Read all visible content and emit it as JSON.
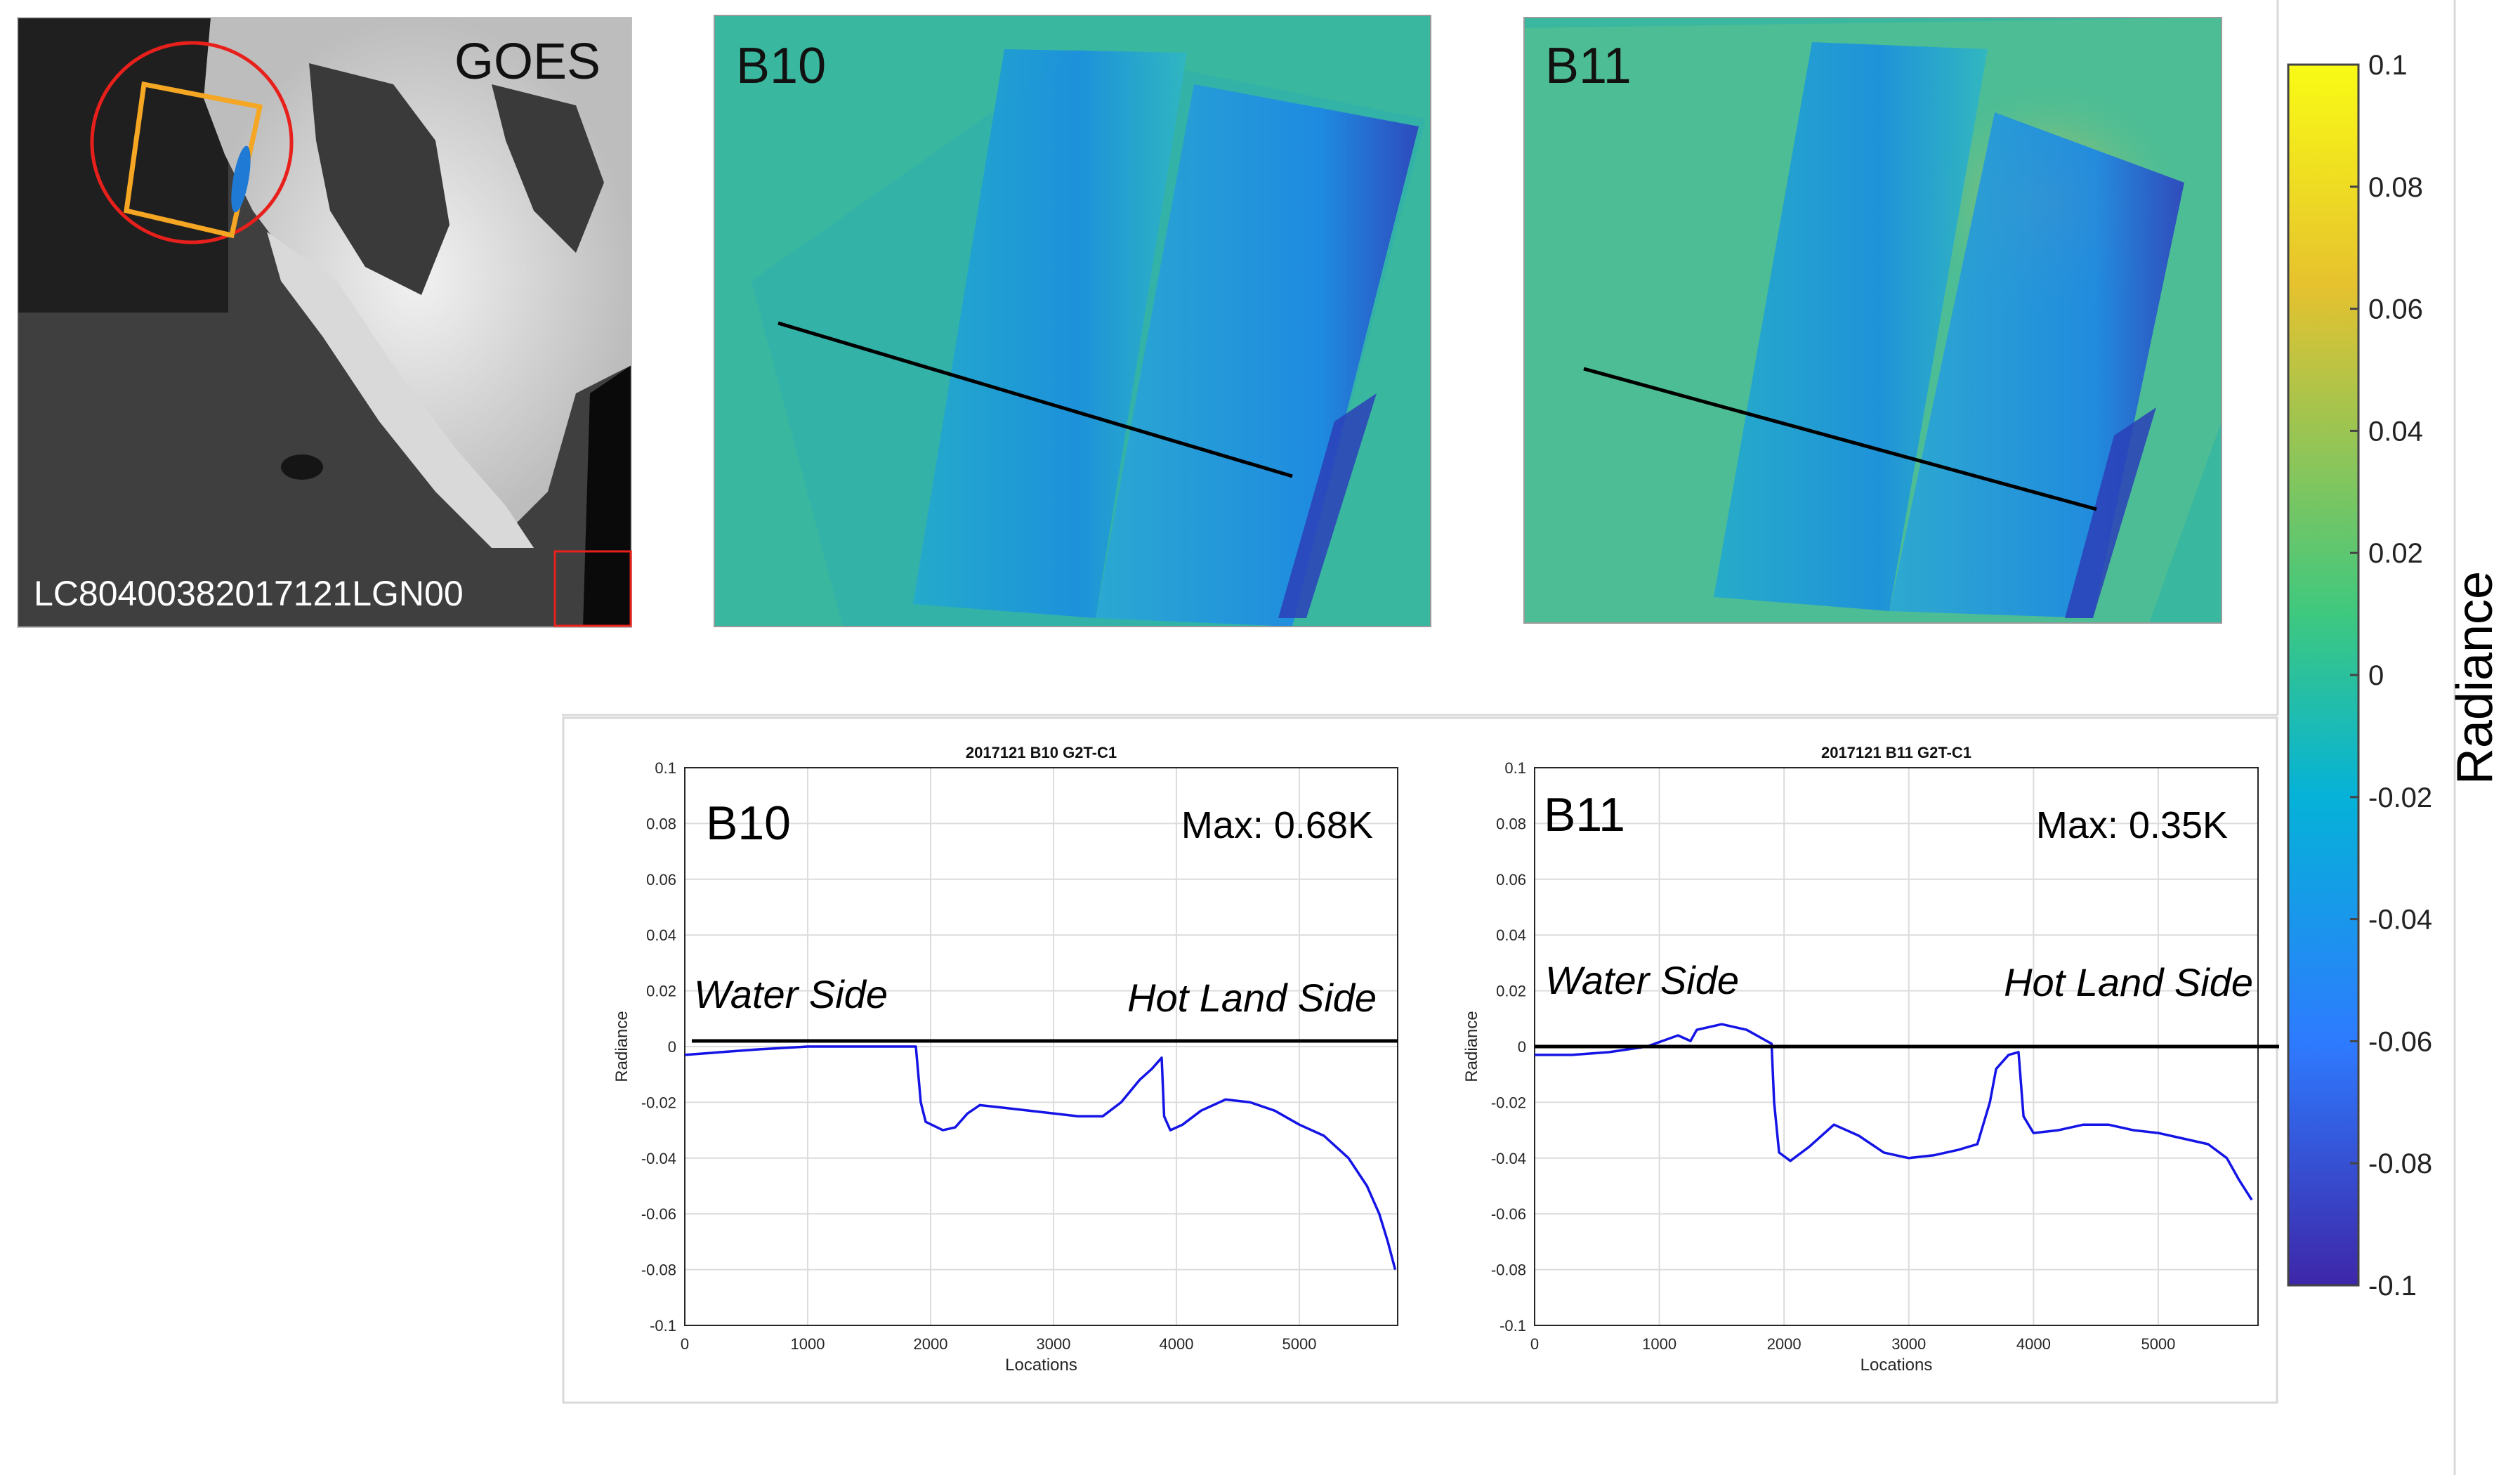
{
  "goes_panel": {
    "title": "GOES",
    "scene_id": "LC80400382017121LGN00"
  },
  "maps": [
    {
      "band": "B10"
    },
    {
      "band": "B11"
    }
  ],
  "colorbar": {
    "label": "Radiance",
    "range": [
      -0.1,
      0.1
    ],
    "ticks": [
      "0.1",
      "0.08",
      "0.06",
      "0.04",
      "0.02",
      "0",
      "-0.02",
      "-0.04",
      "-0.06",
      "-0.08",
      "-0.1"
    ],
    "colors": [
      "#3e26a8",
      "#2e7bff",
      "#05b2d8",
      "#3ec87f",
      "#e6c22e",
      "#f9fb15"
    ]
  },
  "chart_data": [
    {
      "type": "line",
      "title": "2017121 B10 G2T-C1",
      "band_label": "B10",
      "max_label": "Max: 0.68K",
      "water_label": "Water Side",
      "land_label": "Hot Land Side",
      "xlabel": "Locations",
      "ylabel": "Radiance",
      "xlim": [
        0,
        5800
      ],
      "ylim": [
        -0.1,
        0.1
      ],
      "xticks": [
        "0",
        "1000",
        "2000",
        "3000",
        "4000",
        "5000"
      ],
      "yticks": [
        "0.1",
        "0.08",
        "0.06",
        "0.04",
        "0.02",
        "0",
        "-0.02",
        "-0.04",
        "-0.06",
        "-0.08",
        "-0.1"
      ],
      "series": [
        {
          "name": "B10 profile",
          "color": "#1414e6",
          "x": [
            0,
            300,
            600,
            1000,
            1500,
            1880,
            1920,
            1960,
            2100,
            2200,
            2300,
            2400,
            2600,
            2800,
            3000,
            3200,
            3400,
            3550,
            3700,
            3800,
            3880,
            3900,
            3950,
            4050,
            4200,
            4400,
            4600,
            4800,
            5000,
            5200,
            5400,
            5550,
            5650,
            5720,
            5780
          ],
          "y": [
            -0.003,
            -0.002,
            -0.001,
            0.0,
            0.0,
            0.0,
            -0.02,
            -0.027,
            -0.03,
            -0.029,
            -0.024,
            -0.021,
            -0.022,
            -0.023,
            -0.024,
            -0.025,
            -0.025,
            -0.02,
            -0.012,
            -0.008,
            -0.004,
            -0.025,
            -0.03,
            -0.028,
            -0.023,
            -0.019,
            -0.02,
            -0.023,
            -0.028,
            -0.032,
            -0.04,
            -0.05,
            -0.06,
            -0.07,
            -0.08
          ]
        }
      ],
      "reference_line_y": 0.002
    },
    {
      "type": "line",
      "title": "2017121 B11 G2T-C1",
      "band_label": "B11",
      "max_label": "Max: 0.35K",
      "water_label": "Water Side",
      "land_label": "Hot Land Side",
      "xlabel": "Locations",
      "ylabel": "Radiance",
      "xlim": [
        0,
        5800
      ],
      "ylim": [
        -0.1,
        0.1
      ],
      "xticks": [
        "0",
        "1000",
        "2000",
        "3000",
        "4000",
        "5000"
      ],
      "yticks": [
        "0.1",
        "0.08",
        "0.06",
        "0.04",
        "0.02",
        "0",
        "-0.02",
        "-0.04",
        "-0.06",
        "-0.08",
        "-0.1"
      ],
      "series": [
        {
          "name": "B11 profile",
          "color": "#1414e6",
          "x": [
            0,
            300,
            600,
            900,
            1150,
            1250,
            1300,
            1500,
            1700,
            1900,
            1920,
            1960,
            2050,
            2200,
            2400,
            2600,
            2800,
            3000,
            3200,
            3400,
            3550,
            3650,
            3700,
            3800,
            3880,
            3920,
            4000,
            4200,
            4400,
            4600,
            4800,
            5000,
            5200,
            5400,
            5550,
            5650,
            5750
          ],
          "y": [
            -0.003,
            -0.003,
            -0.002,
            0.0,
            0.004,
            0.002,
            0.006,
            0.008,
            0.006,
            0.001,
            -0.02,
            -0.038,
            -0.041,
            -0.036,
            -0.028,
            -0.032,
            -0.038,
            -0.04,
            -0.039,
            -0.037,
            -0.035,
            -0.02,
            -0.008,
            -0.003,
            -0.002,
            -0.025,
            -0.031,
            -0.03,
            -0.028,
            -0.028,
            -0.03,
            -0.031,
            -0.033,
            -0.035,
            -0.04,
            -0.048,
            -0.055
          ]
        }
      ],
      "reference_line_y": 0.0
    }
  ]
}
